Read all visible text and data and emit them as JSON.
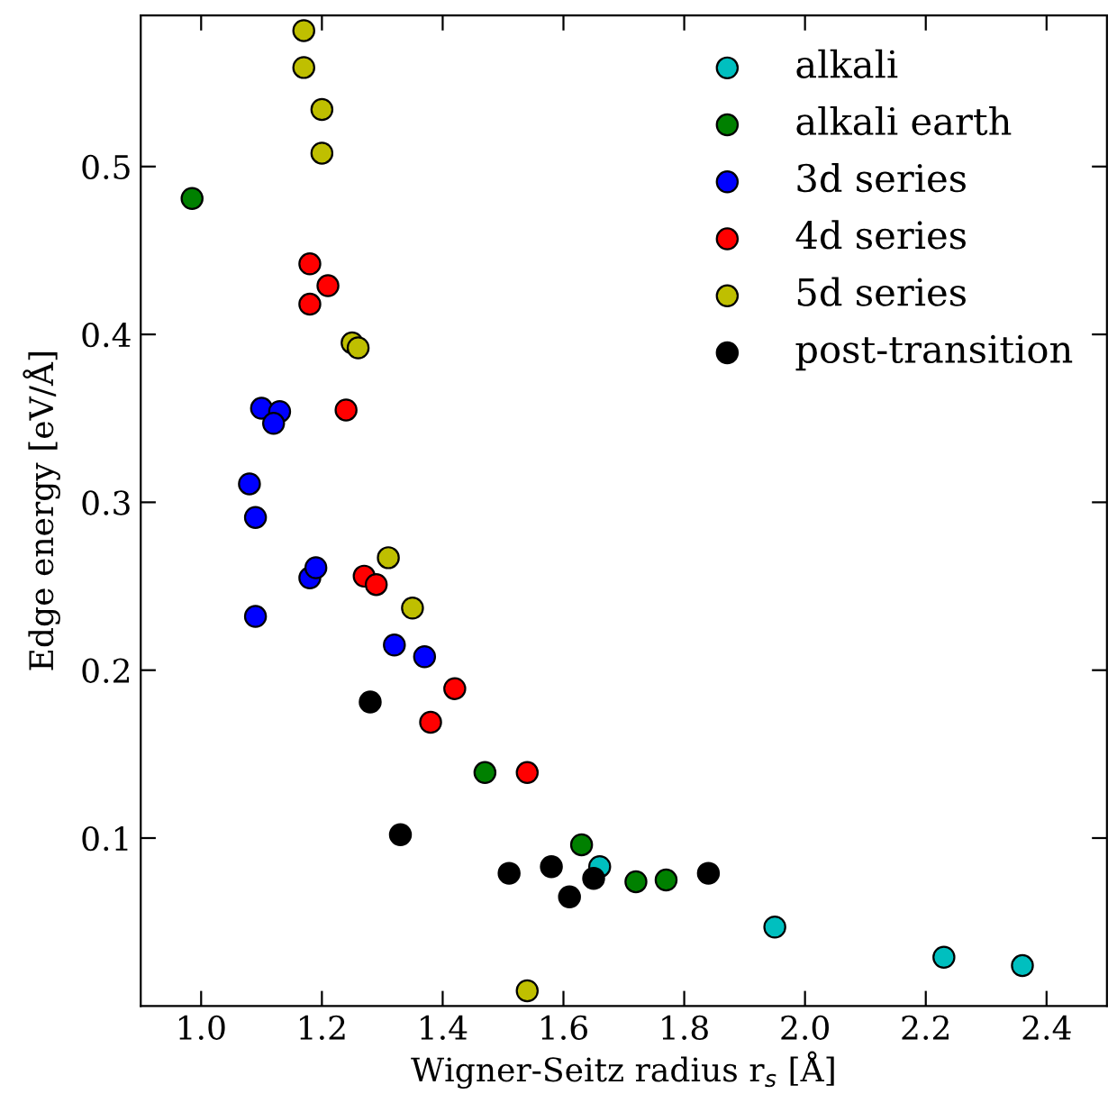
{
  "chart_data": {
    "type": "scatter",
    "xlabel": "Wigner-Seitz radius r$_{s}$ [Å]",
    "ylabel": "Edge energy [eV/Å]",
    "xlim": [
      0.9,
      2.5
    ],
    "ylim": [
      0,
      0.59
    ],
    "xticks": [
      {
        "value": 1.0,
        "label": "1.0"
      },
      1.2,
      1.4,
      1.6,
      1.8,
      {
        "value": 2.0,
        "label": "2.0"
      },
      2.2,
      2.4
    ],
    "yticks": [
      0.1,
      0.2,
      0.3,
      0.4,
      0.5
    ],
    "marker": "circle",
    "grid": false,
    "legend": "top right",
    "series": [
      {
        "name": "alkali",
        "color": "#00bfbf",
        "x": [
          1.66,
          1.95,
          2.23,
          2.36
        ],
        "values": [
          0.083,
          0.047,
          0.029,
          0.024
        ]
      },
      {
        "name": "alkali earth",
        "color": "#008000",
        "x": [
          0.985,
          1.47,
          1.63,
          1.72,
          1.77
        ],
        "values": [
          0.481,
          0.139,
          0.096,
          0.074,
          0.075
        ]
      },
      {
        "name": "3d series",
        "color": "#0000ff",
        "x": [
          1.1,
          1.13,
          1.12,
          1.08,
          1.09,
          1.09,
          1.18,
          1.19,
          1.32,
          1.37
        ],
        "values": [
          0.356,
          0.354,
          0.347,
          0.311,
          0.291,
          0.232,
          0.255,
          0.261,
          0.215,
          0.208
        ]
      },
      {
        "name": "4d series",
        "color": "#ff0000",
        "x": [
          1.18,
          1.21,
          1.18,
          1.24,
          1.27,
          1.29,
          1.42,
          1.38,
          1.54
        ],
        "values": [
          0.442,
          0.429,
          0.418,
          0.355,
          0.256,
          0.251,
          0.189,
          0.169,
          0.139
        ]
      },
      {
        "name": "5d series",
        "color": "#bfbf00",
        "x": [
          1.17,
          1.17,
          1.2,
          1.2,
          1.25,
          1.26,
          1.31,
          1.35,
          1.54
        ],
        "values": [
          0.581,
          0.559,
          0.534,
          0.508,
          0.395,
          0.392,
          0.267,
          0.237,
          0.009
        ]
      },
      {
        "name": "post-transition",
        "color": "#000000",
        "x": [
          1.28,
          1.33,
          1.51,
          1.58,
          1.61,
          1.65,
          1.84
        ],
        "values": [
          0.181,
          0.102,
          0.079,
          0.083,
          0.065,
          0.076,
          0.079
        ]
      }
    ]
  }
}
